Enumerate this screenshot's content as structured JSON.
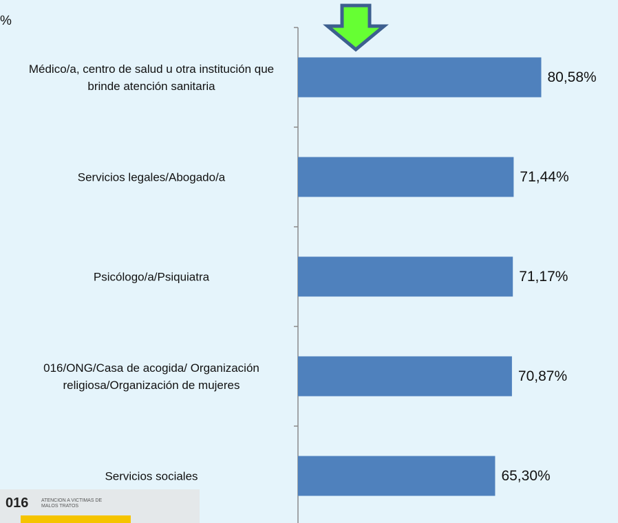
{
  "chart_data": {
    "type": "bar",
    "orientation": "horizontal",
    "annotation": "%",
    "categories": [
      "Médico/a, centro de salud u otra institución que brinde atención sanitaria",
      "Servicios legales/Abogado/a",
      "Psicólogo/a/Psiquiatra",
      "016/ONG/Casa de acogida/ Organización religiosa/Organización de mujeres",
      "Servicios sociales"
    ],
    "values": [
      80.58,
      71.44,
      71.17,
      70.87,
      65.3
    ],
    "value_labels": [
      "80,58%",
      "71,44%",
      "71,17%",
      "70,87%",
      "65,30%"
    ],
    "color": "#4f81bd",
    "xlim": [
      0,
      106
    ]
  },
  "logo": {
    "number": "016",
    "text": "ATENCIÓN A VÍCTIMAS DE MALOS TRATOS"
  }
}
